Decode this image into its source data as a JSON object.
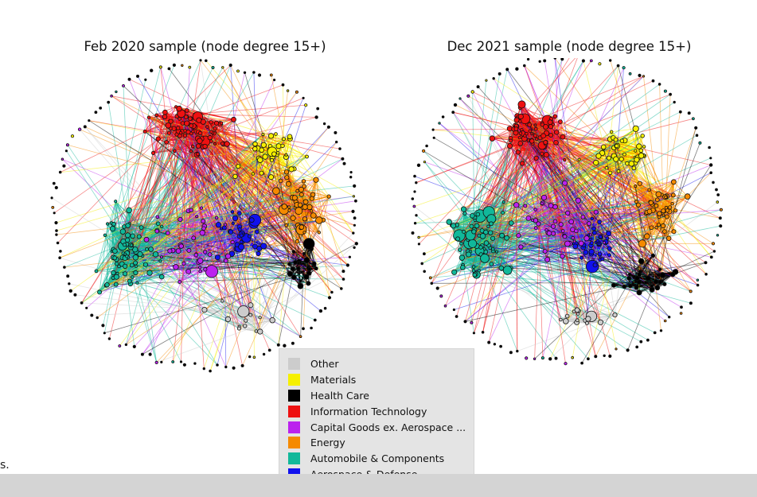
{
  "panels": [
    {
      "title": "Feb 2020 sample (node degree 15+)"
    },
    {
      "title": "Dec 2021 sample (node degree 15+)"
    }
  ],
  "legend": {
    "items": [
      {
        "label": "Other",
        "color": "#cccccc"
      },
      {
        "label": "Materials",
        "color": "#f6f000"
      },
      {
        "label": "Health Care",
        "color": "#000000"
      },
      {
        "label": "Information Technology",
        "color": "#ee1111"
      },
      {
        "label": "Capital Goods ex. Aerospace ...",
        "color": "#bb22ee"
      },
      {
        "label": "Energy",
        "color": "#f58a00"
      },
      {
        "label": "Automobile & Components",
        "color": "#11b89a"
      },
      {
        "label": "Aerospace & Defense",
        "color": "#1111ee"
      }
    ]
  },
  "stray_text": "s.",
  "colors": {
    "bottom_bar": "#d4d4d4",
    "legend_bg": "#e4e4e4"
  }
}
